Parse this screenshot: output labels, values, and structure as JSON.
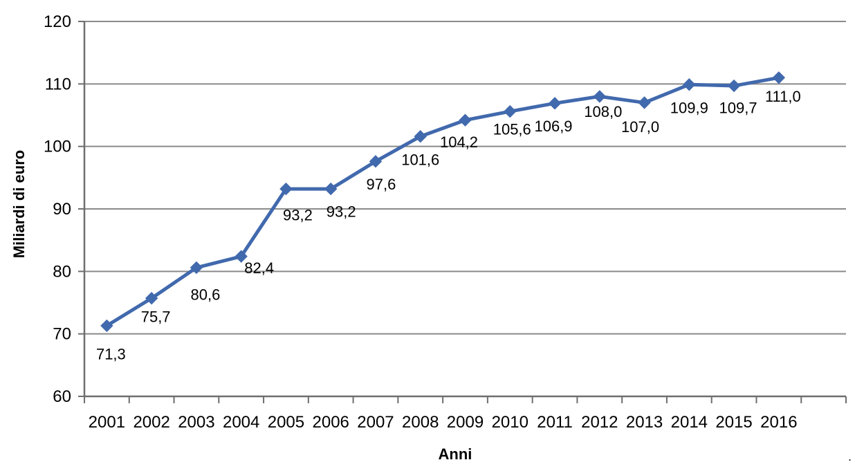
{
  "figure": {
    "stray_mark": "."
  },
  "chart_data": {
    "type": "line",
    "title": "",
    "xlabel": "Anni",
    "ylabel": "Miliardi di euro",
    "categories": [
      "2001",
      "2002",
      "2003",
      "2004",
      "2005",
      "2006",
      "2007",
      "2008",
      "2009",
      "2010",
      "2011",
      "2012",
      "2013",
      "2014",
      "2015",
      "2016"
    ],
    "series": [
      {
        "values": [
          71.3,
          75.7,
          80.6,
          82.4,
          93.2,
          93.2,
          97.6,
          101.6,
          104.2,
          105.6,
          106.9,
          108.0,
          107.0,
          109.9,
          109.7,
          111.0
        ],
        "labels": [
          "71,3",
          "75,7",
          "80,6",
          "82,4",
          "93,2",
          "93,2",
          "97,6",
          "101,6",
          "104,2",
          "105,6",
          "106,9",
          "108,0",
          "107,0",
          "109,9",
          "109,7",
          "111,0"
        ],
        "color": "#4169AD",
        "marker": "diamond"
      }
    ],
    "ylim": [
      60,
      120
    ],
    "yticks": [
      60,
      70,
      80,
      90,
      100,
      110,
      120
    ],
    "grid": true,
    "legend_position": "none",
    "gridline_color": "#8A8A8A",
    "axis_color": "#6E6E6E",
    "text_color": "#000000"
  }
}
